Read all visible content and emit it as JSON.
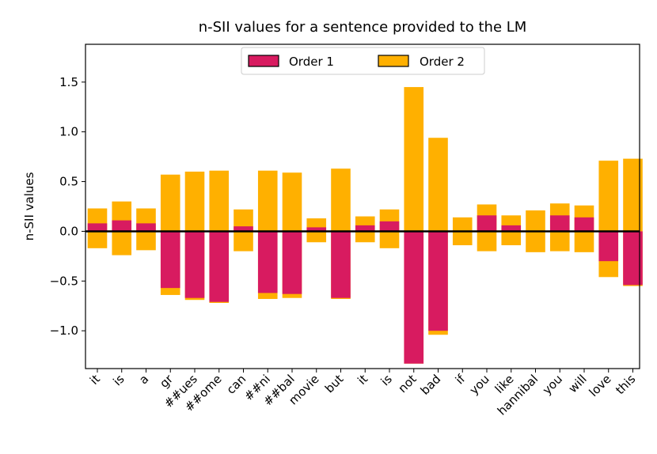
{
  "chart_data": {
    "type": "bar",
    "title": "n-SII values for a sentence provided to the LM",
    "xlabel": "",
    "ylabel": "n-SII values",
    "ylim": [
      -1.38,
      1.88
    ],
    "yticks": [
      -1.0,
      -0.5,
      0.0,
      0.5,
      1.0,
      1.5
    ],
    "ytick_labels": [
      "−1.0",
      "−0.5",
      "0.0",
      "0.5",
      "1.0",
      "1.5"
    ],
    "legend_position": "top-center",
    "categories": [
      "it",
      "is",
      "a",
      "gr",
      "##ues",
      "##ome",
      "can",
      "##ni",
      "##bal",
      "movie",
      "but",
      "it",
      "is",
      "not",
      "bad",
      "if",
      "you",
      "like",
      "hannibal",
      "you",
      "will",
      "love",
      "this"
    ],
    "series": [
      {
        "name": "Order 1",
        "color": "#d81b60",
        "values": [
          0.08,
          0.11,
          0.08,
          -0.57,
          -0.67,
          -0.71,
          0.05,
          -0.62,
          -0.63,
          0.04,
          -0.67,
          0.06,
          0.1,
          -1.33,
          -1.0,
          0.0,
          0.16,
          0.06,
          0.0,
          0.16,
          0.14,
          -0.3,
          -0.54
        ]
      },
      {
        "name": "Order 2",
        "color": "#ffb000",
        "pos_values": [
          0.23,
          0.3,
          0.23,
          0.57,
          0.6,
          0.61,
          0.22,
          0.61,
          0.59,
          0.13,
          0.63,
          0.15,
          0.22,
          1.45,
          0.94,
          0.14,
          0.27,
          0.16,
          0.21,
          0.28,
          0.26,
          0.71,
          0.73
        ],
        "neg_values": [
          -0.17,
          -0.24,
          -0.19,
          -0.64,
          -0.69,
          -0.72,
          -0.2,
          -0.68,
          -0.67,
          -0.11,
          -0.68,
          -0.11,
          -0.17,
          -1.33,
          -1.04,
          -0.14,
          -0.2,
          -0.14,
          -0.21,
          -0.2,
          -0.21,
          -0.46,
          -0.55
        ]
      }
    ]
  }
}
